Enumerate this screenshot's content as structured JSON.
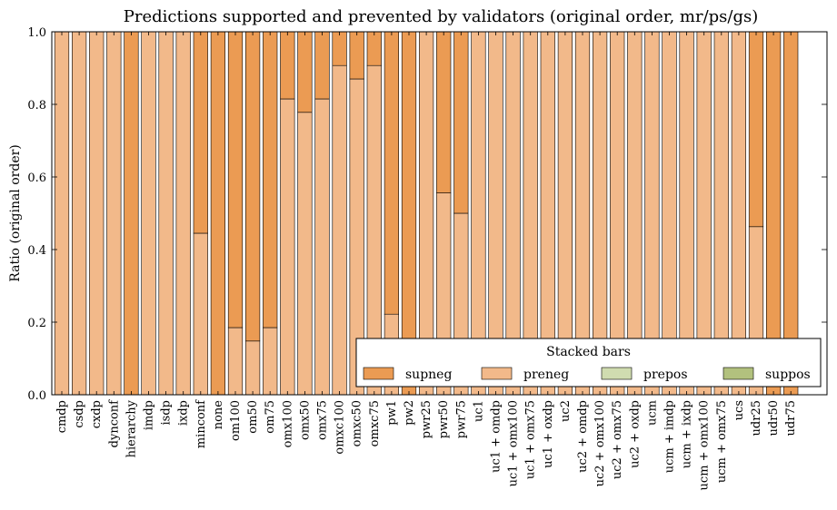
{
  "chart_data": {
    "type": "bar",
    "stacked": true,
    "title": "Predictions supported and prevented by validators (original order, mr/ps/gs)",
    "xlabel": "",
    "ylabel": "Ratio (original order)",
    "ylim": [
      0,
      1.0
    ],
    "yticks": [
      "0.0",
      "0.2",
      "0.4",
      "0.6",
      "0.8",
      "1.0"
    ],
    "grid": false,
    "legend": {
      "title": "Stacked bars",
      "placement": "lower-right"
    },
    "categories": [
      "cmdp",
      "csdp",
      "cxdp",
      "dynconf",
      "hierarchy",
      "imdp",
      "isdp",
      "ixdp",
      "minconf",
      "none",
      "om100",
      "om50",
      "om75",
      "omx100",
      "omx50",
      "omx75",
      "omxc100",
      "omxc50",
      "omxc75",
      "pw1",
      "pw2",
      "pwr25",
      "pwr50",
      "pwr75",
      "uc1",
      "uc1 + omdp",
      "uc1 + omx100",
      "uc1 + omx75",
      "uc1 + oxdp",
      "uc2",
      "uc2 + omdp",
      "uc2 + omx100",
      "uc2 + omx75",
      "uc2 + oxdp",
      "ucm",
      "ucm + imdp",
      "ucm + ixdp",
      "ucm + omx100",
      "ucm + omx75",
      "ucs",
      "udr25",
      "udr50",
      "udr75"
    ],
    "series": [
      {
        "name": "supneg",
        "color": "#eb9b53",
        "values": [
          0,
          0,
          0,
          0,
          1.0,
          0,
          0,
          0,
          0.555,
          1.0,
          0.815,
          0.852,
          0.815,
          0.185,
          0.222,
          0.185,
          0.093,
          0.13,
          0.093,
          0.778,
          1.0,
          0,
          0.444,
          0.5,
          0,
          0,
          0,
          0,
          0,
          0,
          0,
          0,
          0,
          0,
          0,
          0,
          0,
          0,
          0,
          0,
          0.537,
          1.0,
          1.0
        ]
      },
      {
        "name": "preneg",
        "color": "#f2b98a",
        "values": [
          1.0,
          1.0,
          1.0,
          1.0,
          0,
          1.0,
          1.0,
          1.0,
          0.445,
          0,
          0.185,
          0.148,
          0.185,
          0.815,
          0.778,
          0.815,
          0.907,
          0.87,
          0.907,
          0.222,
          0,
          1.0,
          0.556,
          0.5,
          1.0,
          1.0,
          1.0,
          1.0,
          1.0,
          1.0,
          1.0,
          1.0,
          1.0,
          1.0,
          1.0,
          1.0,
          1.0,
          1.0,
          1.0,
          1.0,
          0.463,
          0,
          0
        ]
      },
      {
        "name": "prepos",
        "color": "#d0dcb0",
        "values": [
          0,
          0,
          0,
          0,
          0,
          0,
          0,
          0,
          0,
          0,
          0,
          0,
          0,
          0,
          0,
          0,
          0,
          0,
          0,
          0,
          0,
          0,
          0,
          0,
          0,
          0,
          0,
          0,
          0,
          0,
          0,
          0,
          0,
          0,
          0,
          0,
          0,
          0,
          0,
          0,
          0,
          0,
          0
        ]
      },
      {
        "name": "suppos",
        "color": "#b2c17e",
        "values": [
          0,
          0,
          0,
          0,
          0,
          0,
          0,
          0,
          0,
          0,
          0,
          0,
          0,
          0,
          0,
          0,
          0,
          0,
          0,
          0,
          0,
          0,
          0,
          0,
          0,
          0,
          0,
          0,
          0,
          0,
          0,
          0,
          0,
          0,
          0,
          0,
          0,
          0,
          0,
          0,
          0,
          0,
          0
        ]
      }
    ]
  }
}
